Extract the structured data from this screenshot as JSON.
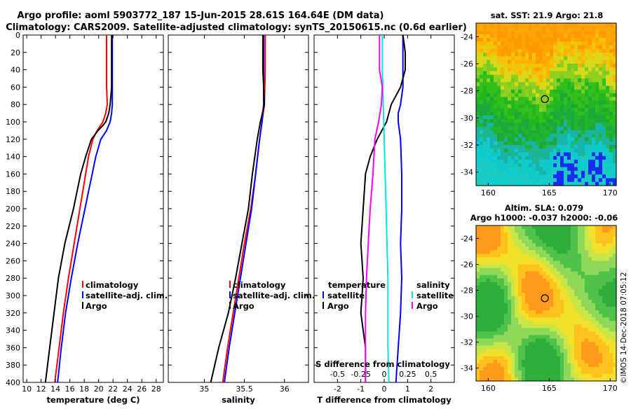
{
  "titles": {
    "line1": "Argo profile: aoml 5903772_187 15-Jun-2015 28.61S 164.64E (DM data)",
    "line2": "Climatology: CARS2009. Satellite-adjusted climatology: synTS_20150615.nc (0.6d earlier)"
  },
  "credit": "©IMOS 14-Dec-2018 07:05:12",
  "colors": {
    "climatology": "#ff0000",
    "satellite": "#0000ff",
    "argo": "#000000",
    "s_satellite": "#00e5e5",
    "s_argo": "#ff00ff"
  },
  "chart_data": [
    {
      "id": "temperature",
      "type": "line",
      "xlabel": "temperature (deg C)",
      "ylabel": "depth",
      "xlim": [
        9.5,
        29
      ],
      "ylim": [
        400,
        0
      ],
      "xticks": [
        "10",
        "12",
        "14",
        "16",
        "18",
        "20",
        "22",
        "24",
        "26",
        "28"
      ],
      "yticks": [
        "0",
        "20",
        "40",
        "60",
        "80",
        "100",
        "120",
        "140",
        "160",
        "180",
        "200",
        "220",
        "240",
        "260",
        "280",
        "300",
        "320",
        "340",
        "360",
        "380",
        "400"
      ],
      "legend": [
        "climatology",
        "satellite-adj. clim.",
        "Argo"
      ],
      "series": [
        {
          "name": "climatology",
          "depth": [
            0,
            20,
            40,
            60,
            80,
            90,
            100,
            110,
            120,
            140,
            160,
            180,
            200,
            240,
            280,
            320,
            360,
            400
          ],
          "values": [
            21.1,
            21.1,
            21.1,
            21.1,
            21.2,
            21.0,
            20.6,
            19.8,
            19.2,
            18.6,
            18.2,
            17.8,
            17.4,
            16.6,
            15.8,
            15.1,
            14.5,
            13.9
          ]
        },
        {
          "name": "satellite-adj. clim.",
          "depth": [
            0,
            20,
            40,
            60,
            80,
            90,
            100,
            110,
            120,
            140,
            160,
            180,
            200,
            240,
            280,
            320,
            360,
            400
          ],
          "values": [
            21.9,
            21.9,
            21.9,
            21.9,
            21.9,
            21.8,
            21.6,
            21.1,
            20.3,
            19.6,
            19.1,
            18.6,
            18.1,
            17.1,
            16.2,
            15.4,
            14.8,
            14.3
          ]
        },
        {
          "name": "Argo",
          "depth": [
            0,
            20,
            40,
            60,
            80,
            90,
            100,
            105,
            110,
            120,
            140,
            160,
            180,
            200,
            240,
            280,
            320,
            360,
            400
          ],
          "values": [
            21.8,
            21.8,
            21.8,
            21.8,
            21.6,
            21.4,
            21.0,
            20.5,
            19.9,
            19.0,
            18.2,
            17.5,
            17.0,
            16.5,
            15.3,
            14.4,
            13.8,
            13.2,
            12.6
          ]
        }
      ]
    },
    {
      "id": "salinity",
      "type": "line",
      "xlabel": "salinity",
      "ylabel": "depth",
      "xlim": [
        34.55,
        36.3
      ],
      "ylim": [
        400,
        0
      ],
      "xticks": [
        "35",
        "35.5",
        "36"
      ],
      "legend": [
        "climatology",
        "satellite-adj. clim.",
        "Argo"
      ],
      "series": [
        {
          "name": "climatology",
          "depth": [
            0,
            40,
            80,
            100,
            120,
            160,
            200,
            240,
            280,
            320,
            360,
            400
          ],
          "values": [
            35.76,
            35.76,
            35.75,
            35.72,
            35.69,
            35.64,
            35.58,
            35.5,
            35.43,
            35.36,
            35.29,
            35.23
          ]
        },
        {
          "name": "satellite-adj. clim.",
          "depth": [
            0,
            40,
            80,
            100,
            120,
            160,
            200,
            240,
            280,
            320,
            360,
            400
          ],
          "values": [
            35.74,
            35.74,
            35.74,
            35.72,
            35.69,
            35.64,
            35.59,
            35.52,
            35.45,
            35.38,
            35.31,
            35.25
          ]
        },
        {
          "name": "Argo",
          "depth": [
            0,
            40,
            80,
            100,
            120,
            160,
            200,
            240,
            280,
            320,
            360,
            400
          ],
          "values": [
            35.73,
            35.73,
            35.75,
            35.7,
            35.66,
            35.6,
            35.55,
            35.47,
            35.39,
            35.3,
            35.18,
            35.08
          ]
        }
      ]
    },
    {
      "id": "difference",
      "type": "line",
      "xlabel": "T difference from climatology",
      "x2label": "S difference from climatology",
      "xlim": [
        -3,
        3
      ],
      "x2lim": [
        -0.75,
        0.75
      ],
      "ylim": [
        400,
        0
      ],
      "xticks": [
        "-2",
        "-1",
        "0",
        "1",
        "2"
      ],
      "x2ticks": [
        "-0.5",
        "-0.25",
        "0",
        "0.25",
        "0.5"
      ],
      "legend_temperature": {
        "title": "temperature",
        "items": [
          "satellite",
          "Argo"
        ]
      },
      "legend_salinity": {
        "title": "salinity",
        "items": [
          "satellite",
          "Argo"
        ]
      },
      "series": [
        {
          "name": "T satellite",
          "axis": "T",
          "depth": [
            0,
            20,
            40,
            60,
            80,
            90,
            100,
            120,
            160,
            200,
            240,
            280,
            320,
            360,
            400
          ],
          "values": [
            0.8,
            0.8,
            0.8,
            0.8,
            0.7,
            0.6,
            0.6,
            0.7,
            0.75,
            0.75,
            0.7,
            0.75,
            0.7,
            0.6,
            0.5
          ]
        },
        {
          "name": "T Argo",
          "axis": "T",
          "depth": [
            0,
            20,
            40,
            60,
            80,
            100,
            120,
            140,
            160,
            200,
            240,
            280,
            320,
            360,
            400
          ],
          "values": [
            0.8,
            0.9,
            0.9,
            0.7,
            0.3,
            0.1,
            -0.3,
            -0.6,
            -0.8,
            -0.9,
            -1.0,
            -0.9,
            -1.0,
            -0.8,
            -0.8
          ]
        },
        {
          "name": "S satellite",
          "axis": "S",
          "depth": [
            0,
            40,
            80,
            120,
            160,
            200,
            240,
            280,
            320,
            360,
            400
          ],
          "values": [
            -0.02,
            -0.02,
            -0.01,
            0.0,
            0.01,
            0.02,
            0.03,
            0.04,
            0.04,
            0.04,
            0.05
          ]
        },
        {
          "name": "S Argo",
          "axis": "S",
          "depth": [
            0,
            20,
            40,
            60,
            80,
            100,
            120,
            160,
            200,
            240,
            280,
            320,
            360,
            400
          ],
          "values": [
            -0.05,
            -0.05,
            -0.05,
            -0.02,
            -0.03,
            -0.06,
            -0.1,
            -0.12,
            -0.15,
            -0.17,
            -0.19,
            -0.2,
            -0.2,
            -0.2
          ]
        }
      ]
    },
    {
      "id": "sst_map",
      "type": "heatmap",
      "title": "sat. SST: 21.9 Argo: 21.8",
      "xlim": [
        159,
        170.5
      ],
      "ylim": [
        -35,
        -23
      ],
      "xticks": [
        "160",
        "165",
        "170"
      ],
      "yticks": [
        "-24",
        "-26",
        "-28",
        "-30",
        "-32",
        "-34"
      ],
      "argo_position": {
        "lon": 164.64,
        "lat": -28.61
      }
    },
    {
      "id": "sla_map",
      "type": "heatmap",
      "title": "Altim. SLA: 0.079",
      "subtitle": "Argo h1000: -0.037 h2000: -0.06",
      "xlim": [
        159,
        170.5
      ],
      "ylim": [
        -35,
        -23
      ],
      "xticks": [
        "160",
        "165",
        "170"
      ],
      "yticks": [
        "-24",
        "-26",
        "-28",
        "-30",
        "-32",
        "-34"
      ],
      "argo_position": {
        "lon": 164.64,
        "lat": -28.61
      }
    }
  ]
}
